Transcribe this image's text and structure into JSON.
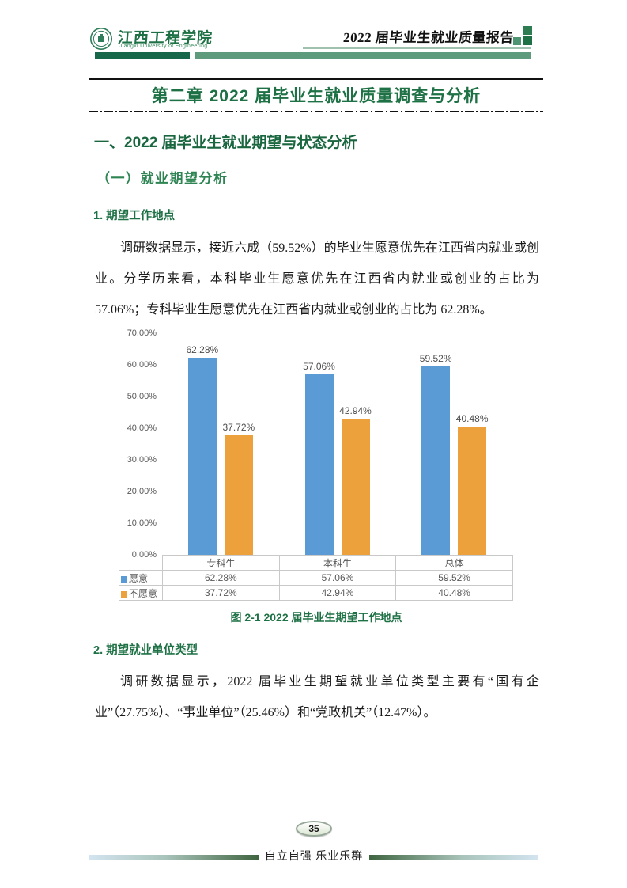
{
  "header": {
    "university_name_zh": "江西工程学院",
    "university_name_en": "Jiangxi University of Engineering",
    "report_title": "2022 届毕业生就业质量报告"
  },
  "chapter_title": "第二章 2022 届毕业生就业质量调查与分析",
  "section_heading": "一、2022 届毕业生就业期望与状态分析",
  "subsection_heading": "（一）就业期望分析",
  "item1_heading": "1. 期望工作地点",
  "paragraph1": "调研数据显示，接近六成（59.52%）的毕业生愿意优先在江西省内就业或创业。分学历来看，本科毕业生愿意优先在江西省内就业或创业的占比为 57.06%；专科毕业生愿意优先在江西省内就业或创业的占比为 62.28%。",
  "figure_caption": "图 2-1 2022 届毕业生期望工作地点",
  "item2_heading": "2. 期望就业单位类型",
  "paragraph2": "调研数据显示，2022 届毕业生期望就业单位类型主要有“国有企业”（27.75%）、“事业单位”（25.46%）和“党政机关”（12.47%）。",
  "footer": {
    "page_number": "35",
    "motto": "自立自强 乐业乐群"
  },
  "colors": {
    "brand_green_dark": "#17684B",
    "brand_green": "#1E7145",
    "brand_green_medium": "#2E8553",
    "header_bar_light": "#5E9B7D",
    "chart_text": "#595959"
  },
  "chart_data": {
    "type": "bar",
    "title": "",
    "categories": [
      "专科生",
      "本科生",
      "总体"
    ],
    "series": [
      {
        "name": "愿意",
        "color": "#5B9BD5",
        "values": [
          62.28,
          57.06,
          59.52
        ]
      },
      {
        "name": "不愿意",
        "color": "#EDA13C",
        "values": [
          37.72,
          42.94,
          40.48
        ]
      }
    ],
    "y_ticks": [
      "70.00%",
      "60.00%",
      "50.00%",
      "40.00%",
      "30.00%",
      "20.00%",
      "10.00%",
      "0.00%"
    ],
    "ylim": [
      0,
      70
    ],
    "grid": false,
    "legend_position": "table-below",
    "value_label_format": "0.00%"
  }
}
